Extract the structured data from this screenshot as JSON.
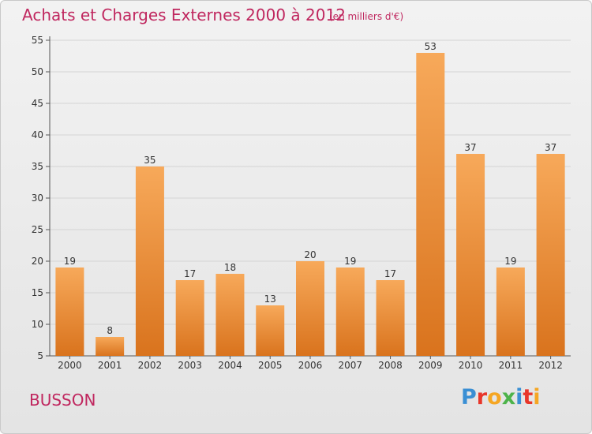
{
  "header": {
    "title": "Achats et Charges Externes 2000 à 2012",
    "subtitle": "(en milliers d'€)"
  },
  "footer": {
    "commune": "BUSSON",
    "logo_text": "Proxiti"
  },
  "colors": {
    "title": "#c0275f",
    "bar_top": "#f7a95a",
    "bar_bottom": "#d9731d",
    "grid": "#d4d4d4",
    "axis": "#555555",
    "logo_letters": [
      "#3a8fd4",
      "#e8362a",
      "#f5a623",
      "#4db34a",
      "#3a8fd4",
      "#e8362a",
      "#f5a623"
    ]
  },
  "chart_data": {
    "type": "bar",
    "categories": [
      "2000",
      "2001",
      "2002",
      "2003",
      "2004",
      "2005",
      "2006",
      "2007",
      "2008",
      "2009",
      "2010",
      "2011",
      "2012"
    ],
    "values": [
      19,
      8,
      35,
      17,
      18,
      13,
      20,
      19,
      17,
      53,
      37,
      19,
      37
    ],
    "title": "Achats et Charges Externes 2000 à 2012",
    "ylim": [
      5,
      55
    ],
    "yticks": [
      5,
      10,
      15,
      20,
      25,
      30,
      35,
      40,
      45,
      50,
      55
    ],
    "grid": true,
    "data_labels": true
  }
}
